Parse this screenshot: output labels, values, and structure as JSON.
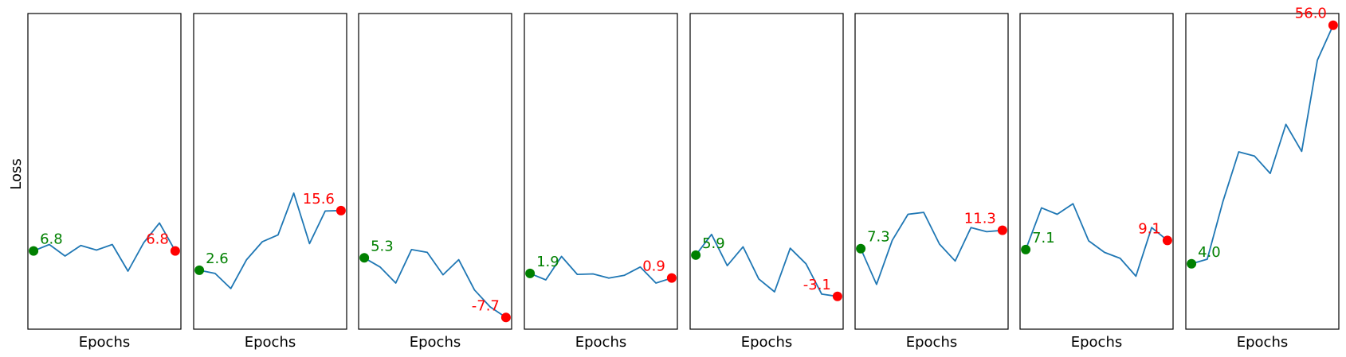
{
  "figure": {
    "ylabel": "Loss",
    "colors": {
      "line": "#1f77b4",
      "start": "#008000",
      "end": "#ff0000",
      "frame": "#000000"
    }
  },
  "chart_data": [
    {
      "type": "line",
      "xlabel": "Epochs",
      "ylabel": "Loss",
      "grid": false,
      "x": [
        0,
        1,
        2,
        3,
        4,
        5,
        6,
        7,
        8,
        9
      ],
      "y": [
        6.8,
        8.2,
        5.7,
        8.0,
        7.0,
        8.2,
        2.4,
        8.6,
        12.9,
        6.8
      ],
      "start_label": "6.8",
      "end_label": "6.8"
    },
    {
      "type": "line",
      "xlabel": "Epochs",
      "grid": false,
      "x": [
        0,
        1,
        2,
        3,
        4,
        5,
        6,
        7,
        8,
        9
      ],
      "y": [
        2.6,
        1.9,
        -1.4,
        4.9,
        8.8,
        10.3,
        19.4,
        8.4,
        15.5,
        15.6
      ],
      "start_label": "2.6",
      "end_label": "15.6"
    },
    {
      "type": "line",
      "xlabel": "Epochs",
      "grid": false,
      "x": [
        0,
        1,
        2,
        3,
        4,
        5,
        6,
        7,
        8,
        9
      ],
      "y": [
        5.3,
        3.3,
        -0.2,
        7.1,
        6.5,
        1.6,
        4.9,
        -1.7,
        -5.4,
        -7.7
      ],
      "start_label": "5.3",
      "end_label": "-7.7"
    },
    {
      "type": "line",
      "xlabel": "Epochs",
      "grid": false,
      "x": [
        0,
        1,
        2,
        3,
        4,
        5,
        6,
        7,
        8,
        9
      ],
      "y": [
        1.9,
        0.5,
        5.6,
        1.7,
        1.8,
        0.9,
        1.5,
        3.3,
        -0.2,
        0.9
      ],
      "start_label": "1.9",
      "end_label": "0.9"
    },
    {
      "type": "line",
      "xlabel": "Epochs",
      "grid": false,
      "x": [
        0,
        1,
        2,
        3,
        4,
        5,
        6,
        7,
        8,
        9
      ],
      "y": [
        5.9,
        10.4,
        3.6,
        7.7,
        0.7,
        -2.1,
        7.4,
        4.0,
        -2.6,
        -3.1
      ],
      "start_label": "5.9",
      "end_label": "-3.1"
    },
    {
      "type": "line",
      "xlabel": "Epochs",
      "grid": false,
      "x": [
        0,
        1,
        2,
        3,
        4,
        5,
        6,
        7,
        8,
        9
      ],
      "y": [
        7.3,
        -0.5,
        9.1,
        14.8,
        15.2,
        8.3,
        4.6,
        11.9,
        11.0,
        11.3
      ],
      "start_label": "7.3",
      "end_label": "11.3"
    },
    {
      "type": "line",
      "xlabel": "Epochs",
      "grid": false,
      "x": [
        0,
        1,
        2,
        3,
        4,
        5,
        6,
        7,
        8,
        9
      ],
      "y": [
        7.1,
        16.2,
        14.8,
        17.1,
        9.0,
        6.5,
        5.2,
        1.3,
        11.9,
        9.1
      ],
      "start_label": "7.1",
      "end_label": "9.1"
    },
    {
      "type": "line",
      "xlabel": "Epochs",
      "grid": false,
      "x": [
        0,
        1,
        2,
        3,
        4,
        5,
        6,
        7,
        8,
        9
      ],
      "y": [
        4.0,
        5.0,
        17.6,
        28.4,
        27.5,
        23.7,
        34.4,
        28.5,
        48.4,
        56.0
      ],
      "start_label": "4.0",
      "end_label": "56.0"
    }
  ]
}
